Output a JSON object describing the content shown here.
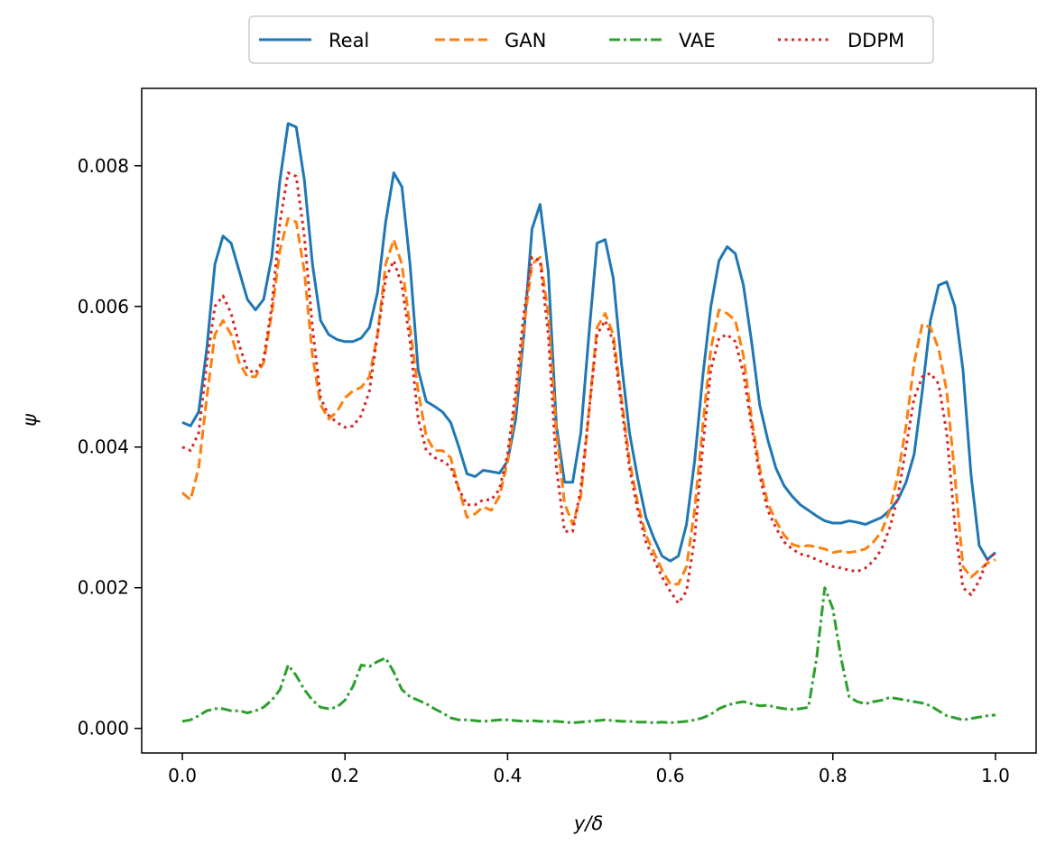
{
  "chart_data": {
    "type": "line",
    "title": "",
    "xlabel": "y/δ",
    "ylabel": "ψ",
    "xlim": [
      -0.05,
      1.05
    ],
    "ylim": [
      -0.00035,
      0.0091
    ],
    "xticks": [
      0.0,
      0.2,
      0.4,
      0.6,
      0.8,
      1.0
    ],
    "xtick_labels": [
      "0.0",
      "0.2",
      "0.4",
      "0.6",
      "0.8",
      "1.0"
    ],
    "yticks": [
      0.0,
      0.002,
      0.004,
      0.006,
      0.008
    ],
    "ytick_labels": [
      "0.000",
      "0.002",
      "0.004",
      "0.006",
      "0.008"
    ],
    "grid": false,
    "legend": "top-center",
    "series": [
      {
        "name": "Real",
        "color": "#1f77b4",
        "style": "solid",
        "x": [
          0.0,
          0.01,
          0.02,
          0.03,
          0.04,
          0.05,
          0.06,
          0.07,
          0.08,
          0.09,
          0.1,
          0.11,
          0.12,
          0.13,
          0.14,
          0.15,
          0.16,
          0.17,
          0.18,
          0.19,
          0.2,
          0.21,
          0.22,
          0.23,
          0.24,
          0.25,
          0.26,
          0.27,
          0.28,
          0.29,
          0.3,
          0.31,
          0.32,
          0.33,
          0.34,
          0.35,
          0.36,
          0.37,
          0.38,
          0.39,
          0.4,
          0.41,
          0.42,
          0.43,
          0.44,
          0.45,
          0.46,
          0.47,
          0.48,
          0.49,
          0.5,
          0.51,
          0.52,
          0.53,
          0.54,
          0.55,
          0.56,
          0.57,
          0.58,
          0.59,
          0.6,
          0.61,
          0.62,
          0.63,
          0.64,
          0.65,
          0.66,
          0.67,
          0.68,
          0.69,
          0.7,
          0.71,
          0.72,
          0.73,
          0.74,
          0.75,
          0.76,
          0.77,
          0.78,
          0.79,
          0.8,
          0.81,
          0.82,
          0.83,
          0.84,
          0.85,
          0.86,
          0.87,
          0.88,
          0.89,
          0.9,
          0.91,
          0.92,
          0.93,
          0.94,
          0.95,
          0.96,
          0.97,
          0.98,
          0.99,
          1.0
        ],
        "values": [
          0.00435,
          0.0043,
          0.0045,
          0.0054,
          0.0066,
          0.007,
          0.0069,
          0.0065,
          0.0061,
          0.00595,
          0.0061,
          0.0067,
          0.0078,
          0.0086,
          0.00855,
          0.0078,
          0.0066,
          0.0058,
          0.0056,
          0.00553,
          0.0055,
          0.0055,
          0.00555,
          0.0057,
          0.0062,
          0.0072,
          0.0079,
          0.0077,
          0.0066,
          0.0051,
          0.00465,
          0.00458,
          0.0045,
          0.00435,
          0.004,
          0.00362,
          0.00358,
          0.00367,
          0.00365,
          0.00363,
          0.0038,
          0.0044,
          0.0056,
          0.0071,
          0.00745,
          0.0065,
          0.0043,
          0.0035,
          0.0035,
          0.0042,
          0.0056,
          0.0069,
          0.00695,
          0.0064,
          0.0052,
          0.0042,
          0.00355,
          0.003,
          0.0027,
          0.00245,
          0.00238,
          0.00245,
          0.0029,
          0.0038,
          0.005,
          0.006,
          0.00665,
          0.00685,
          0.00675,
          0.0063,
          0.0055,
          0.0046,
          0.0041,
          0.0037,
          0.00345,
          0.0033,
          0.00318,
          0.0031,
          0.00302,
          0.00295,
          0.00292,
          0.00292,
          0.00295,
          0.00293,
          0.0029,
          0.00295,
          0.003,
          0.0031,
          0.00325,
          0.0035,
          0.0039,
          0.0048,
          0.0058,
          0.0063,
          0.00635,
          0.006,
          0.0051,
          0.0036,
          0.0026,
          0.0024,
          0.0025
        ]
      },
      {
        "name": "GAN",
        "color": "#ff7f0e",
        "style": "dashed",
        "x": [
          0.0,
          0.01,
          0.02,
          0.03,
          0.04,
          0.05,
          0.06,
          0.07,
          0.08,
          0.09,
          0.1,
          0.11,
          0.12,
          0.13,
          0.14,
          0.15,
          0.16,
          0.17,
          0.18,
          0.19,
          0.2,
          0.21,
          0.22,
          0.23,
          0.24,
          0.25,
          0.26,
          0.27,
          0.28,
          0.29,
          0.3,
          0.31,
          0.32,
          0.33,
          0.34,
          0.35,
          0.36,
          0.37,
          0.38,
          0.39,
          0.4,
          0.41,
          0.42,
          0.43,
          0.44,
          0.45,
          0.46,
          0.47,
          0.48,
          0.49,
          0.5,
          0.51,
          0.52,
          0.53,
          0.54,
          0.55,
          0.56,
          0.57,
          0.58,
          0.59,
          0.6,
          0.61,
          0.62,
          0.63,
          0.64,
          0.65,
          0.66,
          0.67,
          0.68,
          0.69,
          0.7,
          0.71,
          0.72,
          0.73,
          0.74,
          0.75,
          0.76,
          0.77,
          0.78,
          0.79,
          0.8,
          0.81,
          0.82,
          0.83,
          0.84,
          0.85,
          0.86,
          0.87,
          0.88,
          0.89,
          0.9,
          0.91,
          0.92,
          0.93,
          0.94,
          0.95,
          0.96,
          0.97,
          0.98,
          0.99,
          1.0
        ],
        "values": [
          0.00335,
          0.00325,
          0.0037,
          0.0047,
          0.0056,
          0.0058,
          0.0056,
          0.0052,
          0.005,
          0.005,
          0.0052,
          0.0059,
          0.0068,
          0.00725,
          0.0072,
          0.0065,
          0.0053,
          0.0046,
          0.0044,
          0.0045,
          0.0047,
          0.0048,
          0.00485,
          0.005,
          0.0056,
          0.0066,
          0.00695,
          0.0066,
          0.0057,
          0.0048,
          0.00415,
          0.00395,
          0.00395,
          0.00385,
          0.0034,
          0.003,
          0.00305,
          0.00315,
          0.0031,
          0.0033,
          0.0038,
          0.0046,
          0.0057,
          0.0066,
          0.0067,
          0.0059,
          0.0042,
          0.0032,
          0.0029,
          0.0033,
          0.0045,
          0.0057,
          0.0059,
          0.0056,
          0.0047,
          0.0038,
          0.0032,
          0.00275,
          0.0025,
          0.00225,
          0.00205,
          0.00205,
          0.0023,
          0.0031,
          0.0043,
          0.0054,
          0.00595,
          0.0059,
          0.0058,
          0.0053,
          0.0044,
          0.0037,
          0.0032,
          0.00295,
          0.00275,
          0.00262,
          0.00258,
          0.0026,
          0.00258,
          0.00255,
          0.0025,
          0.00252,
          0.0025,
          0.00252,
          0.00255,
          0.00265,
          0.0028,
          0.0031,
          0.0036,
          0.0043,
          0.0052,
          0.00575,
          0.0057,
          0.0054,
          0.0048,
          0.0036,
          0.0023,
          0.00215,
          0.00225,
          0.00235,
          0.0024
        ]
      },
      {
        "name": "VAE",
        "color": "#2ca02c",
        "style": "dashdot",
        "x": [
          0.0,
          0.01,
          0.02,
          0.03,
          0.04,
          0.05,
          0.06,
          0.07,
          0.08,
          0.09,
          0.1,
          0.11,
          0.12,
          0.13,
          0.14,
          0.15,
          0.16,
          0.17,
          0.18,
          0.19,
          0.2,
          0.21,
          0.22,
          0.23,
          0.24,
          0.25,
          0.26,
          0.27,
          0.28,
          0.29,
          0.3,
          0.31,
          0.32,
          0.33,
          0.34,
          0.35,
          0.36,
          0.37,
          0.38,
          0.39,
          0.4,
          0.41,
          0.42,
          0.43,
          0.44,
          0.45,
          0.46,
          0.47,
          0.48,
          0.49,
          0.5,
          0.51,
          0.52,
          0.53,
          0.54,
          0.55,
          0.56,
          0.57,
          0.58,
          0.59,
          0.6,
          0.61,
          0.62,
          0.63,
          0.64,
          0.65,
          0.66,
          0.67,
          0.68,
          0.69,
          0.7,
          0.71,
          0.72,
          0.73,
          0.74,
          0.75,
          0.76,
          0.77,
          0.78,
          0.79,
          0.8,
          0.81,
          0.82,
          0.83,
          0.84,
          0.85,
          0.86,
          0.87,
          0.88,
          0.89,
          0.9,
          0.91,
          0.92,
          0.93,
          0.94,
          0.95,
          0.96,
          0.97,
          0.98,
          0.99,
          1.0
        ],
        "values": [
          0.0001,
          0.00012,
          0.00018,
          0.00025,
          0.00028,
          0.00028,
          0.00025,
          0.00025,
          0.00022,
          0.00025,
          0.0003,
          0.0004,
          0.00055,
          0.0009,
          0.00075,
          0.00055,
          0.0004,
          0.0003,
          0.00028,
          0.0003,
          0.0004,
          0.0006,
          0.0009,
          0.00088,
          0.00095,
          0.001,
          0.0008,
          0.00055,
          0.00045,
          0.0004,
          0.00035,
          0.00028,
          0.00022,
          0.00015,
          0.00012,
          0.00012,
          0.00011,
          0.0001,
          0.00011,
          0.00012,
          0.00012,
          0.00011,
          0.0001,
          0.00011,
          0.0001,
          0.0001,
          0.0001,
          9e-05,
          8e-05,
          9e-05,
          0.0001,
          0.00011,
          0.00012,
          0.00011,
          0.0001,
          0.0001,
          9e-05,
          9e-05,
          8e-05,
          9e-05,
          8e-05,
          9e-05,
          0.0001,
          0.00012,
          0.00015,
          0.0002,
          0.00028,
          0.00033,
          0.00036,
          0.00038,
          0.00035,
          0.00032,
          0.00033,
          0.0003,
          0.00028,
          0.00027,
          0.00028,
          0.0003,
          0.001,
          0.002,
          0.0017,
          0.001,
          0.00045,
          0.00038,
          0.00035,
          0.00038,
          0.0004,
          0.00044,
          0.00042,
          0.0004,
          0.00038,
          0.00036,
          0.00032,
          0.00025,
          0.00018,
          0.00015,
          0.00012,
          0.00014,
          0.00016,
          0.00018,
          0.00019
        ]
      },
      {
        "name": "DDPM",
        "color": "#d62728",
        "style": "dotted",
        "x": [
          0.0,
          0.01,
          0.02,
          0.03,
          0.04,
          0.05,
          0.06,
          0.07,
          0.08,
          0.09,
          0.1,
          0.11,
          0.12,
          0.13,
          0.14,
          0.15,
          0.16,
          0.17,
          0.18,
          0.19,
          0.2,
          0.21,
          0.22,
          0.23,
          0.24,
          0.25,
          0.26,
          0.27,
          0.28,
          0.29,
          0.3,
          0.31,
          0.32,
          0.33,
          0.34,
          0.35,
          0.36,
          0.37,
          0.38,
          0.39,
          0.4,
          0.41,
          0.42,
          0.43,
          0.44,
          0.45,
          0.46,
          0.47,
          0.48,
          0.49,
          0.5,
          0.51,
          0.52,
          0.53,
          0.54,
          0.55,
          0.56,
          0.57,
          0.58,
          0.59,
          0.6,
          0.61,
          0.62,
          0.63,
          0.64,
          0.65,
          0.66,
          0.67,
          0.68,
          0.69,
          0.7,
          0.71,
          0.72,
          0.73,
          0.74,
          0.75,
          0.76,
          0.77,
          0.78,
          0.79,
          0.8,
          0.81,
          0.82,
          0.83,
          0.84,
          0.85,
          0.86,
          0.87,
          0.88,
          0.89,
          0.9,
          0.91,
          0.92,
          0.93,
          0.94,
          0.95,
          0.96,
          0.97,
          0.98,
          0.99,
          1.0
        ],
        "values": [
          0.004,
          0.00395,
          0.0042,
          0.0052,
          0.006,
          0.00615,
          0.0059,
          0.00545,
          0.0051,
          0.00505,
          0.00525,
          0.006,
          0.0072,
          0.0079,
          0.00785,
          0.007,
          0.0057,
          0.0047,
          0.00445,
          0.00435,
          0.00428,
          0.0043,
          0.00445,
          0.0048,
          0.0056,
          0.0064,
          0.00665,
          0.0063,
          0.0055,
          0.0044,
          0.00395,
          0.00385,
          0.0038,
          0.00372,
          0.0034,
          0.00318,
          0.00318,
          0.00325,
          0.00325,
          0.0034,
          0.0039,
          0.0048,
          0.0059,
          0.0067,
          0.00665,
          0.0056,
          0.0037,
          0.0028,
          0.0028,
          0.0034,
          0.0045,
          0.0056,
          0.0058,
          0.0055,
          0.0046,
          0.0037,
          0.0031,
          0.00265,
          0.0024,
          0.00215,
          0.00195,
          0.00178,
          0.00195,
          0.0027,
          0.004,
          0.0051,
          0.00555,
          0.0056,
          0.0055,
          0.00505,
          0.0043,
          0.0036,
          0.0031,
          0.00285,
          0.00265,
          0.00255,
          0.00248,
          0.00245,
          0.0024,
          0.00235,
          0.0023,
          0.00228,
          0.00225,
          0.00223,
          0.00228,
          0.00238,
          0.00255,
          0.00285,
          0.0033,
          0.004,
          0.0047,
          0.005,
          0.00505,
          0.0049,
          0.0042,
          0.0029,
          0.002,
          0.0019,
          0.0021,
          0.0024,
          0.0025
        ]
      }
    ]
  }
}
